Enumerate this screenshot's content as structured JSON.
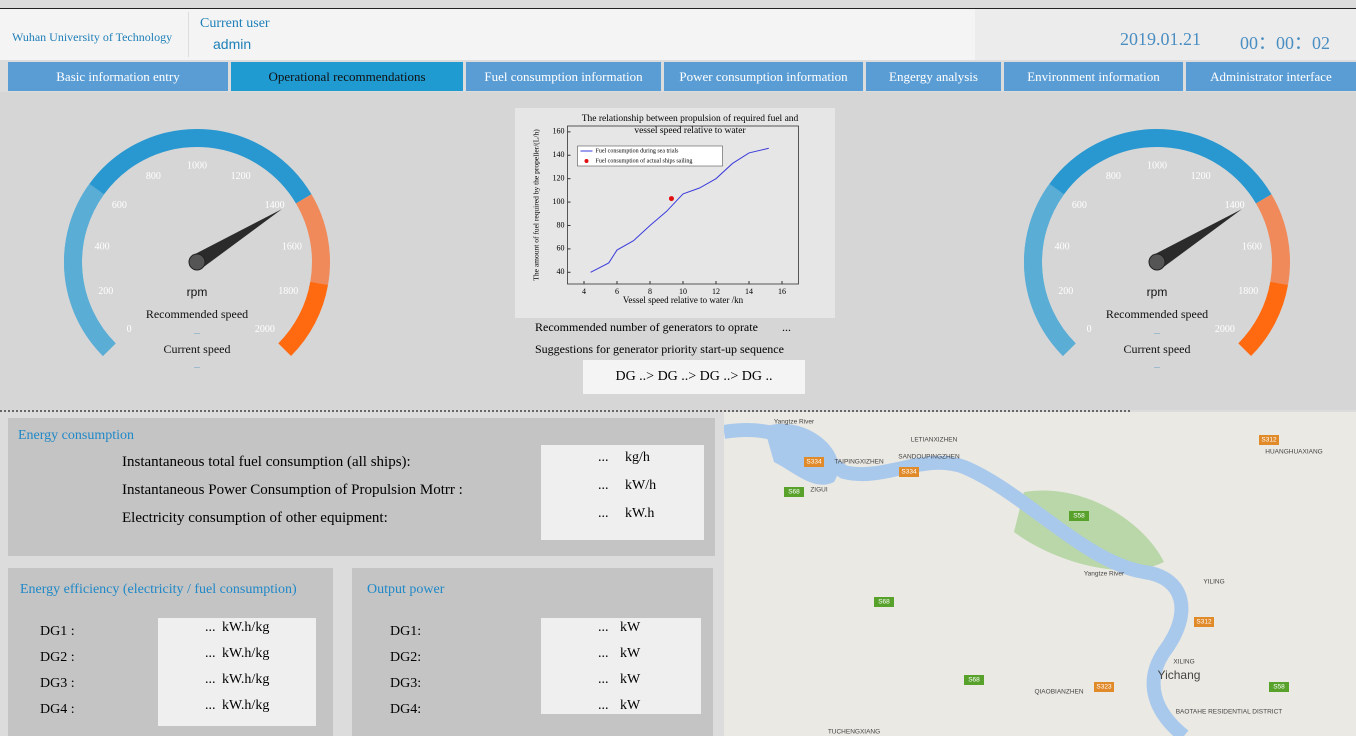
{
  "header": {
    "university": "Wuhan University of Technology",
    "user_label": "Current user",
    "user": "admin",
    "date": "2019.01.21",
    "time": "00：00：02"
  },
  "nav": {
    "tabs": [
      "Basic information entry",
      "Operational recommendations",
      "Fuel consumption information",
      "Power consumption information",
      "Engergy analysis",
      "Environment information",
      "Administrator interface"
    ]
  },
  "gauges": [
    {
      "range": [
        0,
        2000
      ],
      "ticks": [
        0,
        200,
        400,
        600,
        800,
        1000,
        1200,
        1400,
        1600,
        1800,
        2000
      ],
      "unit": "rpm",
      "needle": 1430,
      "recommended_label": "Recommended speed",
      "recommended_value": "...",
      "current_label": "Current speed",
      "current_value": "..."
    },
    {
      "range": [
        0,
        2000
      ],
      "ticks": [
        0,
        200,
        400,
        600,
        800,
        1000,
        1200,
        1400,
        1600,
        1800,
        2000
      ],
      "unit": "rpm",
      "needle": 1430,
      "recommended_label": "Recommended speed",
      "recommended_value": "...",
      "current_label": "Current speed",
      "current_value": "..."
    }
  ],
  "chart_data": {
    "type": "line",
    "title": "The relationship between propulsion of required fuel and vessel speed relative to water",
    "x_label": "Vessel speed relative to water /kn",
    "y_label": "The amount of fuel required by the propeller/(L/h)",
    "xlim": [
      3,
      17
    ],
    "xticks": [
      4,
      6,
      8,
      10,
      12,
      14,
      16
    ],
    "ylim": [
      30,
      165
    ],
    "yticks": [
      40,
      60,
      80,
      100,
      120,
      140,
      160
    ],
    "legend": "upper-left",
    "series": [
      {
        "name": "Fuel consumption during sea trials",
        "color": "#3b3bdc",
        "x": [
          4.4,
          5.5,
          6,
          7,
          8,
          9,
          10,
          11,
          12,
          13,
          14,
          15.2
        ],
        "values": [
          40,
          48,
          59,
          67,
          80,
          92,
          107,
          112,
          120,
          133,
          142,
          146
        ]
      },
      {
        "name": "Fuel consumption of actual ships sailing",
        "color": "#e01010",
        "x": [
          9.3
        ],
        "values": [
          103
        ]
      }
    ]
  },
  "recommendations": {
    "generators_label": "Recommended number of generators to oprate",
    "generators_value": "...",
    "sequence_label": "Suggestions for generator priority start-up sequence",
    "sequence": "DG ..> DG ..> DG ..> DG .."
  },
  "energy_consumption": {
    "title": "Energy consumption",
    "rows": [
      {
        "label": "Instantaneous total fuel consumption (all ships):",
        "value": "...",
        "unit": "kg/h"
      },
      {
        "label": "Instantaneous Power Consumption of Propulsion Motrr :",
        "value": "...",
        "unit": "kW/h"
      },
      {
        "label": "Electricity consumption of other equipment:",
        "value": "...",
        "unit": "kW.h"
      }
    ]
  },
  "energy_efficiency": {
    "title": "Energy efficiency (electricity / fuel consumption)",
    "rows": [
      {
        "label": "DG1 :",
        "value": "...",
        "unit": "kW.h/kg"
      },
      {
        "label": "DG2 :",
        "value": "...",
        "unit": "kW.h/kg"
      },
      {
        "label": "DG3 :",
        "value": "...",
        "unit": "kW.h/kg"
      },
      {
        "label": "DG4 :",
        "value": "...",
        "unit": "kW.h/kg"
      }
    ]
  },
  "output_power": {
    "title": "Output  power",
    "rows": [
      {
        "label": "DG1:",
        "value": "...",
        "unit": "kW"
      },
      {
        "label": "DG2:",
        "value": "...",
        "unit": "kW"
      },
      {
        "label": "DG3:",
        "value": "...",
        "unit": "kW"
      },
      {
        "label": "DG4:",
        "value": "...",
        "unit": "kW"
      }
    ]
  },
  "map": {
    "labels": [
      "Yangtze River",
      "LETIANXIZHEN",
      "TAIPINGXIZHEN",
      "ZIGUI",
      "SANDOUPINGZHEN",
      "HUANGHUAXIANG",
      "Yangtze River",
      "YILING",
      "XILING",
      "Yichang",
      "QIAOBIANZHEN",
      "BAOTAHE RESIDENTIAL DISTRICT",
      "TUCHENGXIANG",
      "S334",
      "S334",
      "S68",
      "S58",
      "S312",
      "S312",
      "S68",
      "S68",
      "S323",
      "S58"
    ]
  }
}
